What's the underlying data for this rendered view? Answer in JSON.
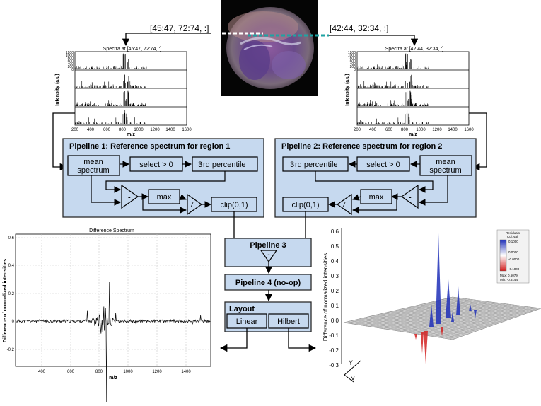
{
  "image_panel": {
    "left_slice": "[45:47, 72:74, :]",
    "right_slice": "[42:44, 32:34, :]"
  },
  "spectra": {
    "left": {
      "title": "Spectra at [45:47, 72:74, :]",
      "ylabel": "Intensity (a.u)",
      "xlabel": "m/z",
      "xticks": [
        "200",
        "400",
        "600",
        "800",
        "1000",
        "1200",
        "1400",
        "1600"
      ],
      "yticks": [
        "1200",
        "1000",
        "800",
        "600",
        "400",
        "200",
        "0"
      ]
    },
    "right": {
      "title": "Spectra at [42:44, 32:34, :]",
      "ylabel": "Intensity (a.u)",
      "xlabel": "m/z",
      "xticks": [
        "200",
        "400",
        "600",
        "800",
        "1000",
        "1200",
        "1400",
        "1600"
      ],
      "yticks": [
        "1200",
        "1000",
        "800",
        "600",
        "400",
        "200",
        "0"
      ]
    }
  },
  "pipeline1": {
    "title": "Pipeline 1:  Reference spectrum for region 1",
    "mean": [
      "mean",
      "spectrum"
    ],
    "select": "select > 0",
    "percentile": "rd percentile",
    "percentile_num": "3",
    "minus": "-",
    "max": "max",
    "divide": "/",
    "clip": "clip(0,1)"
  },
  "pipeline2": {
    "title": "Pipeline 2:  Reference spectrum for region 2",
    "mean": [
      "mean",
      "spectrum"
    ],
    "select": "select > 0",
    "percentile": "rd percentile",
    "percentile_num": "3",
    "minus": "-",
    "max": "max",
    "divide": "/",
    "clip": "clip(0,1)"
  },
  "pipeline3": {
    "title": "Pipeline 3",
    "op": "-"
  },
  "pipeline4": {
    "title": "Pipeline 4 (no-op)"
  },
  "layout": {
    "title": "Layout",
    "linear": "Linear",
    "hilbert": "Hilbert"
  },
  "difference_chart": {
    "title": "Difference Spectrum",
    "xlabel": "m/z",
    "ylabel": "Difference of normalized intensities",
    "xticks": [
      "400",
      "600",
      "800",
      "1000",
      "1200",
      "1400"
    ],
    "yticks": [
      "0.6",
      "0.4",
      "0.2",
      "0",
      "-0.2"
    ]
  },
  "surface_chart": {
    "zlabel": "Difference of normalized intensities",
    "zticks": [
      "0.6",
      "0.5",
      "0.4",
      "0.3",
      "0.2",
      "0.1",
      "0.0",
      "-0.1",
      "-0.2",
      "-0.3"
    ],
    "axis_y": "Y",
    "axis_x": "X",
    "colorbar_title": [
      "Residuals",
      "Col. val."
    ],
    "colorbar_ticks": [
      "0.1000",
      "0.0000",
      "-0.0000",
      "-0.1000"
    ],
    "colorbar_max": "Max: 0.6079",
    "colorbar_min": "Min: -0.3144"
  },
  "colors": {
    "panel_fill": "#c6d9ef",
    "panel_stroke": "#2b2b2b",
    "surface_pos": "#1f2fb8",
    "surface_neg": "#d22020",
    "dashed_teal": "#1fa3a3"
  }
}
